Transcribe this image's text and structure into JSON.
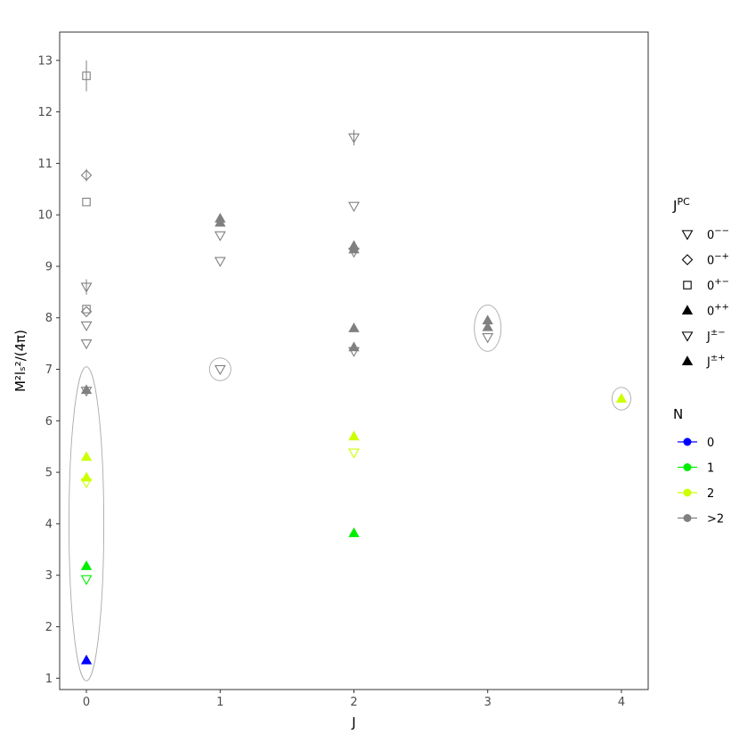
{
  "chart_data": {
    "type": "scatter",
    "xlabel": "J",
    "ylabel": "M²lₛ²/(4π)",
    "xlim": [
      -0.2,
      4.2
    ],
    "ylim": [
      0.78,
      13.55
    ],
    "x_ticks": [
      "0",
      "1",
      "2",
      "3",
      "4"
    ],
    "y_ticks": [
      "1",
      "2",
      "3",
      "4",
      "5",
      "6",
      "7",
      "8",
      "9",
      "10",
      "11",
      "12",
      "13"
    ],
    "grid": false,
    "colors": {
      "N0": "#0000ff",
      "N1": "#00ee00",
      "N2": "#ccff00",
      "N>2": "#808080"
    },
    "shapes": {
      "0--": "triangle-down-open",
      "0-+": "diamond-open",
      "0+-": "square-open",
      "0++": "triangle-up-filled",
      "J+-": "triangle-down-open",
      "J++": "triangle-up-filled"
    },
    "points": [
      {
        "x": 0,
        "y": 12.7,
        "shape": "0+-",
        "n": ">2",
        "err": 0.3
      },
      {
        "x": 0,
        "y": 10.77,
        "shape": "0-+",
        "n": ">2",
        "err": 0.12
      },
      {
        "x": 0,
        "y": 10.25,
        "shape": "0+-",
        "n": ">2",
        "err": 0
      },
      {
        "x": 0,
        "y": 8.6,
        "shape": "0--",
        "n": ">2",
        "err": 0.15
      },
      {
        "x": 0,
        "y": 8.17,
        "shape": "0+-",
        "n": ">2",
        "err": 0
      },
      {
        "x": 0,
        "y": 8.12,
        "shape": "0-+",
        "n": ">2",
        "err": 0
      },
      {
        "x": 0,
        "y": 7.85,
        "shape": "0--",
        "n": ">2",
        "err": 0
      },
      {
        "x": 0,
        "y": 7.5,
        "shape": "0--",
        "n": ">2",
        "err": 0
      },
      {
        "x": 0,
        "y": 6.6,
        "shape": "0++",
        "n": ">2",
        "err": 0
      },
      {
        "x": 0,
        "y": 6.58,
        "shape": "0--",
        "n": ">2",
        "err": 0
      },
      {
        "x": 0,
        "y": 5.3,
        "shape": "0++",
        "n": "2",
        "err": 0
      },
      {
        "x": 0,
        "y": 4.9,
        "shape": "0++",
        "n": "2",
        "err": 0
      },
      {
        "x": 0,
        "y": 4.8,
        "shape": "0--",
        "n": "2",
        "err": 0
      },
      {
        "x": 0,
        "y": 3.18,
        "shape": "0++",
        "n": "1",
        "err": 0
      },
      {
        "x": 0,
        "y": 2.92,
        "shape": "0--",
        "n": "1",
        "err": 0
      },
      {
        "x": 0,
        "y": 1.35,
        "shape": "0++",
        "n": "0",
        "err": 0
      },
      {
        "x": 1,
        "y": 9.93,
        "shape": "J++",
        "n": ">2",
        "err": 0
      },
      {
        "x": 1,
        "y": 9.85,
        "shape": "J++",
        "n": ">2",
        "err": 0
      },
      {
        "x": 1,
        "y": 9.6,
        "shape": "J+-",
        "n": ">2",
        "err": 0
      },
      {
        "x": 1,
        "y": 9.1,
        "shape": "J+-",
        "n": ">2",
        "err": 0
      },
      {
        "x": 1,
        "y": 7.0,
        "shape": "J+-",
        "n": ">2",
        "err": 0
      },
      {
        "x": 2,
        "y": 11.5,
        "shape": "J+-",
        "n": ">2",
        "err": 0.15
      },
      {
        "x": 2,
        "y": 10.17,
        "shape": "J+-",
        "n": ">2",
        "err": 0
      },
      {
        "x": 2,
        "y": 9.4,
        "shape": "J++",
        "n": ">2",
        "err": 0
      },
      {
        "x": 2,
        "y": 9.33,
        "shape": "J++",
        "n": ">2",
        "err": 0
      },
      {
        "x": 2,
        "y": 9.28,
        "shape": "J+-",
        "n": ">2",
        "err": 0
      },
      {
        "x": 2,
        "y": 7.8,
        "shape": "J++",
        "n": ">2",
        "err": 0
      },
      {
        "x": 2,
        "y": 7.43,
        "shape": "J++",
        "n": ">2",
        "err": 0
      },
      {
        "x": 2,
        "y": 7.35,
        "shape": "J+-",
        "n": ">2",
        "err": 0
      },
      {
        "x": 2,
        "y": 5.7,
        "shape": "J++",
        "n": "2",
        "err": 0
      },
      {
        "x": 2,
        "y": 5.38,
        "shape": "J+-",
        "n": "2",
        "err": 0
      },
      {
        "x": 2,
        "y": 3.82,
        "shape": "J++",
        "n": "1",
        "err": 0
      },
      {
        "x": 3,
        "y": 7.95,
        "shape": "J++",
        "n": ">2",
        "err": 0
      },
      {
        "x": 3,
        "y": 7.82,
        "shape": "J++",
        "n": ">2",
        "err": 0
      },
      {
        "x": 3,
        "y": 7.62,
        "shape": "J+-",
        "n": ">2",
        "err": 0
      },
      {
        "x": 4,
        "y": 6.43,
        "shape": "J++",
        "n": "2",
        "err": 0
      }
    ],
    "ellipses": [
      {
        "cx": 0,
        "cy": 4.0,
        "rx": 0.13,
        "ry": 3.05
      },
      {
        "cx": 1,
        "cy": 7.0,
        "rx": 0.08,
        "ry": 0.22
      },
      {
        "cx": 3,
        "cy": 7.8,
        "rx": 0.1,
        "ry": 0.45
      },
      {
        "cx": 4,
        "cy": 6.43,
        "rx": 0.07,
        "ry": 0.22
      }
    ],
    "legends": [
      {
        "title_main": "J",
        "title_sup": "PC",
        "entries": [
          {
            "main": "0",
            "sup": "−−",
            "marker": "triangle-down-open"
          },
          {
            "main": "0",
            "sup": "−+",
            "marker": "diamond-open"
          },
          {
            "main": "0",
            "sup": "+−",
            "marker": "square-open"
          },
          {
            "main": "0",
            "sup": "++",
            "marker": "triangle-up-filled"
          },
          {
            "main": "J",
            "sup": "±−",
            "marker": "triangle-down-open"
          },
          {
            "main": "J",
            "sup": "±+",
            "marker": "triangle-up-filled"
          }
        ]
      },
      {
        "title_main": "N",
        "title_sup": "",
        "entries": [
          {
            "main": "0",
            "sup": "",
            "color": "#0000ff"
          },
          {
            "main": "1",
            "sup": "",
            "color": "#00ee00"
          },
          {
            "main": "2",
            "sup": "",
            "color": "#ccff00"
          },
          {
            "main": ">2",
            "sup": "",
            "color": "#808080"
          }
        ]
      }
    ]
  }
}
